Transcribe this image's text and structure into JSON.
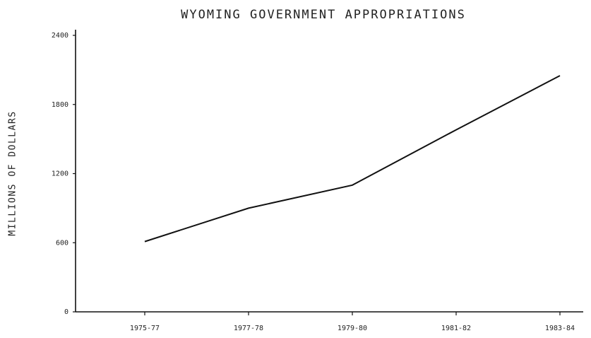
{
  "chart_data": {
    "type": "line",
    "title": "WYOMING GOVERNMENT APPROPRIATIONS",
    "y_label": "MILLIONS OF DOLLARS",
    "categories": [
      "1975-77",
      "1977-78",
      "1979-80",
      "1981-82",
      "1983-84"
    ],
    "values": [
      610,
      900,
      1100,
      1580,
      2050
    ],
    "color": "#111111",
    "ylim": [
      0,
      2400
    ],
    "yticks": [
      0,
      600,
      1200,
      1800,
      2400
    ],
    "grid": false
  }
}
